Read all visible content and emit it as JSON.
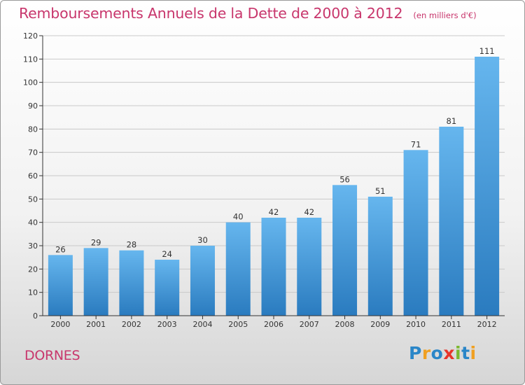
{
  "header": {
    "title": "Remboursements Annuels de la Dette de 2000 à 2012",
    "subtitle": "(en milliers d'€)"
  },
  "footer": {
    "town": "DORNES",
    "logo_text": "Proxiti",
    "logo_colors": [
      "#2a86c8",
      "#f0a021",
      "#2a86c8",
      "#e8352a",
      "#7cb82f",
      "#2a86c8",
      "#f0a021"
    ]
  },
  "colors": {
    "title": "#c8366c",
    "bar_light": "#66b6ee",
    "bar_dark": "#2a7bbf",
    "grid": "#c9c9c9",
    "axis": "#333333"
  },
  "chart_data": {
    "type": "bar",
    "categories": [
      "2000",
      "2001",
      "2002",
      "2003",
      "2004",
      "2005",
      "2006",
      "2007",
      "2008",
      "2009",
      "2010",
      "2011",
      "2012"
    ],
    "values": [
      26,
      29,
      28,
      24,
      30,
      40,
      42,
      42,
      56,
      51,
      71,
      81,
      111
    ],
    "ylim": [
      0,
      120
    ],
    "yticks": [
      0,
      10,
      20,
      30,
      40,
      50,
      60,
      70,
      80,
      90,
      100,
      110,
      120
    ],
    "grid": true,
    "data_labels": true
  }
}
